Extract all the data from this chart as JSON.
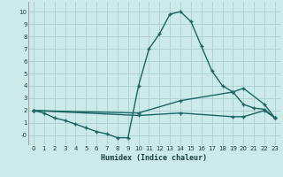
{
  "xlabel": "Humidex (Indice chaleur)",
  "xlim": [
    -0.5,
    23.5
  ],
  "ylim": [
    -0.8,
    10.8
  ],
  "xticks": [
    0,
    1,
    2,
    3,
    4,
    5,
    6,
    7,
    8,
    9,
    10,
    11,
    12,
    13,
    14,
    15,
    16,
    17,
    18,
    19,
    20,
    21,
    22,
    23
  ],
  "yticks": [
    0,
    1,
    2,
    3,
    4,
    5,
    6,
    7,
    8,
    9,
    10
  ],
  "ytick_labels": [
    "-0",
    "1",
    "2",
    "3",
    "4",
    "5",
    "6",
    "7",
    "8",
    "9",
    "10"
  ],
  "background_color": "#cceaea",
  "grid_color": "#aacece",
  "line_color": "#1a6464",
  "line1_x": [
    0,
    1,
    2,
    3,
    4,
    5,
    6,
    7,
    8,
    9,
    10,
    11,
    12,
    13,
    14,
    15,
    16,
    17,
    18,
    19,
    20,
    21,
    22,
    23
  ],
  "line1_y": [
    2.0,
    1.8,
    1.4,
    1.2,
    0.9,
    0.6,
    0.3,
    0.1,
    -0.2,
    -0.2,
    4.0,
    7.0,
    8.2,
    9.8,
    10.0,
    9.2,
    7.2,
    5.2,
    4.0,
    3.5,
    2.5,
    2.2,
    2.1,
    1.4
  ],
  "line2_x": [
    0,
    10,
    14,
    19,
    20,
    22,
    23
  ],
  "line2_y": [
    2.0,
    1.8,
    2.8,
    3.5,
    3.8,
    2.5,
    1.4
  ],
  "line3_x": [
    0,
    10,
    14,
    19,
    20,
    22,
    23
  ],
  "line3_y": [
    2.0,
    1.6,
    1.8,
    1.5,
    1.5,
    2.0,
    1.4
  ]
}
